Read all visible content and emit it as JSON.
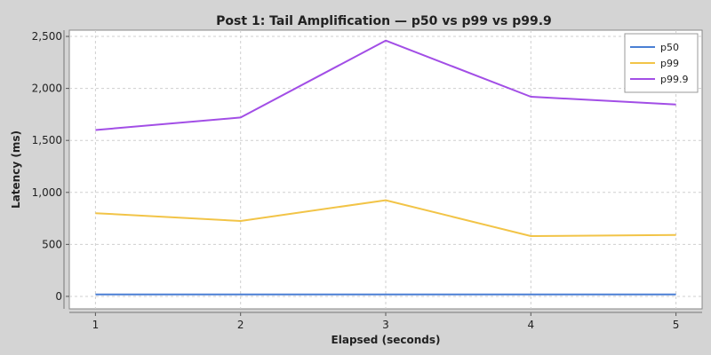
{
  "chart_data": {
    "type": "line",
    "title": "Post 1: Tail Amplification — p50 vs p99 vs p99.9",
    "xlabel": "Elapsed (seconds)",
    "ylabel": "Latency (ms)",
    "x": [
      1,
      2,
      3,
      4,
      5
    ],
    "x_ticks": [
      "1",
      "2",
      "3",
      "4",
      "5"
    ],
    "y_ticks": [
      "0",
      "500",
      "1,000",
      "1,500",
      "2,000",
      "2,500"
    ],
    "ylim": [
      -120,
      2560
    ],
    "xlim": [
      0.82,
      5.18
    ],
    "grid": true,
    "legend_position": "top-right",
    "series": [
      {
        "name": "p50",
        "color": "#4a7fd4",
        "values": [
          18,
          18,
          18,
          18,
          18
        ]
      },
      {
        "name": "p99",
        "color": "#f2c447",
        "values": [
          800,
          725,
          925,
          580,
          590
        ]
      },
      {
        "name": "p99.9",
        "color": "#a24ee6",
        "values": [
          1600,
          1720,
          2460,
          1920,
          1845
        ]
      }
    ]
  }
}
